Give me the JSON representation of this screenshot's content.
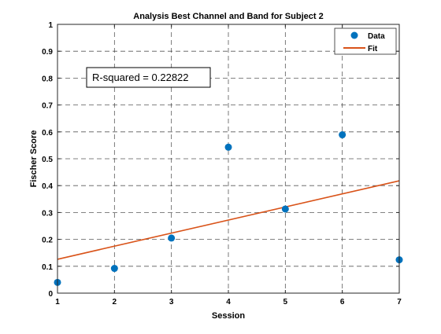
{
  "chart_data": {
    "type": "scatter",
    "title": "Analysis Best Channel and Band for Subject 2",
    "xlabel": "Session",
    "ylabel": "Fischer Score",
    "xlim": [
      1,
      7
    ],
    "ylim": [
      0,
      1
    ],
    "xticks": [
      "1",
      "2",
      "3",
      "4",
      "5",
      "6",
      "7"
    ],
    "yticks": [
      "0",
      "0.1",
      "0.2",
      "0.3",
      "0.4",
      "0.5",
      "0.6",
      "0.7",
      "0.8",
      "0.9",
      "1"
    ],
    "grid": true,
    "legend_position": "top-right",
    "series": [
      {
        "name": "Data",
        "kind": "markers",
        "color": "#0072BD",
        "x": [
          1,
          2,
          3,
          4,
          5,
          6,
          7
        ],
        "y": [
          0.04,
          0.092,
          0.205,
          0.543,
          0.313,
          0.589,
          0.124
        ]
      },
      {
        "name": "Fit",
        "kind": "line",
        "color": "#D95319",
        "x": [
          1,
          7
        ],
        "y": [
          0.126,
          0.418
        ]
      }
    ],
    "annotation": {
      "text": "R-squared = 0.22822"
    }
  }
}
